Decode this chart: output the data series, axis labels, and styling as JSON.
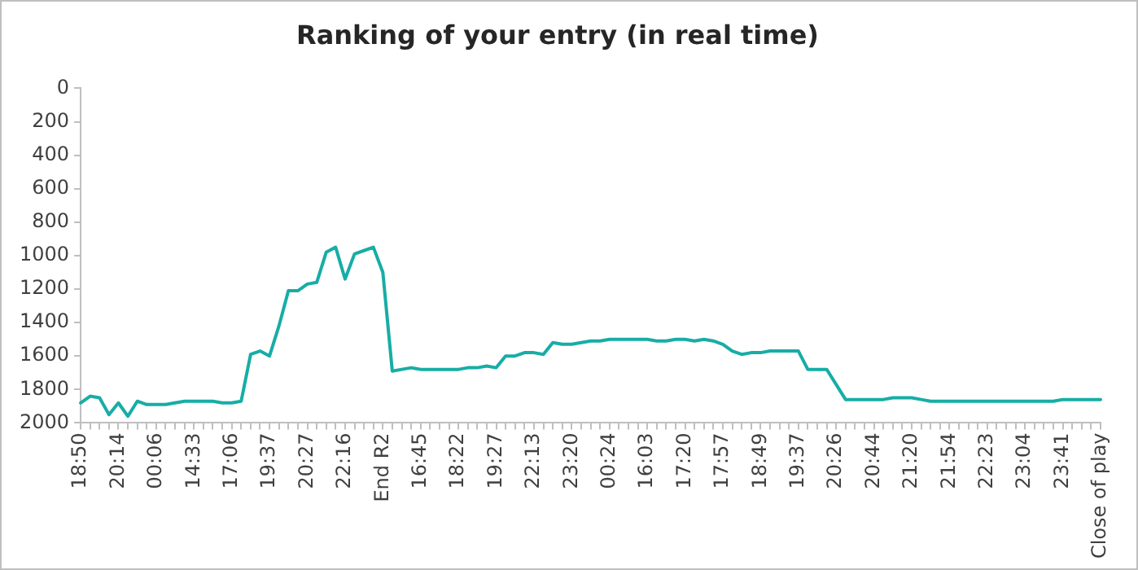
{
  "chart_data": {
    "type": "line",
    "title": "Ranking of your entry (in real time)",
    "categories": [
      "18:50",
      null,
      null,
      null,
      "20:14",
      null,
      null,
      null,
      "00:06",
      null,
      null,
      null,
      "14:33",
      null,
      null,
      null,
      "17:06",
      null,
      null,
      null,
      "19:37",
      null,
      null,
      null,
      "20:27",
      null,
      null,
      null,
      "22:16",
      null,
      null,
      null,
      "End R2",
      null,
      null,
      null,
      "16:45",
      null,
      null,
      null,
      "18:22",
      null,
      null,
      null,
      "19:27",
      null,
      null,
      null,
      "22:13",
      null,
      null,
      null,
      "23:20",
      null,
      null,
      null,
      "00:24",
      null,
      null,
      null,
      "16:03",
      null,
      null,
      null,
      "17:20",
      null,
      null,
      null,
      "17:57",
      null,
      null,
      null,
      "18:49",
      null,
      null,
      null,
      "19:37",
      null,
      null,
      null,
      "20:26",
      null,
      null,
      null,
      "20:44",
      null,
      null,
      null,
      "21:20",
      null,
      null,
      null,
      "21:54",
      null,
      null,
      null,
      "22:23",
      null,
      null,
      null,
      "23:04",
      null,
      null,
      null,
      "23:41",
      null,
      null,
      null,
      "Close of play"
    ],
    "series": [
      {
        "color": "#17ada6",
        "values": [
          1880,
          1840,
          1850,
          1950,
          1880,
          1960,
          1870,
          1890,
          1890,
          1890,
          1880,
          1870,
          1870,
          1870,
          1870,
          1880,
          1880,
          1870,
          1590,
          1570,
          1600,
          1420,
          1210,
          1210,
          1170,
          1160,
          980,
          950,
          1140,
          990,
          970,
          950,
          1100,
          1690,
          1680,
          1670,
          1680,
          1680,
          1680,
          1680,
          1680,
          1670,
          1670,
          1660,
          1670,
          1600,
          1600,
          1580,
          1580,
          1590,
          1520,
          1530,
          1530,
          1520,
          1510,
          1510,
          1500,
          1500,
          1500,
          1500,
          1500,
          1510,
          1510,
          1500,
          1500,
          1510,
          1500,
          1510,
          1530,
          1570,
          1590,
          1580,
          1580,
          1570,
          1570,
          1570,
          1570,
          1680,
          1680,
          1680,
          1770,
          1860,
          1860,
          1860,
          1860,
          1860,
          1850,
          1850,
          1850,
          1860,
          1870,
          1870,
          1870,
          1870,
          1870,
          1870,
          1870,
          1870,
          1870,
          1870,
          1870,
          1870,
          1870,
          1870,
          1860,
          1860,
          1860,
          1860,
          1860
        ]
      }
    ],
    "ylim": [
      2000,
      0
    ],
    "yticks": [
      0,
      200,
      400,
      600,
      800,
      1000,
      1200,
      1400,
      1600,
      1800,
      2000
    ],
    "marker": "none",
    "line_style": "solid"
  }
}
